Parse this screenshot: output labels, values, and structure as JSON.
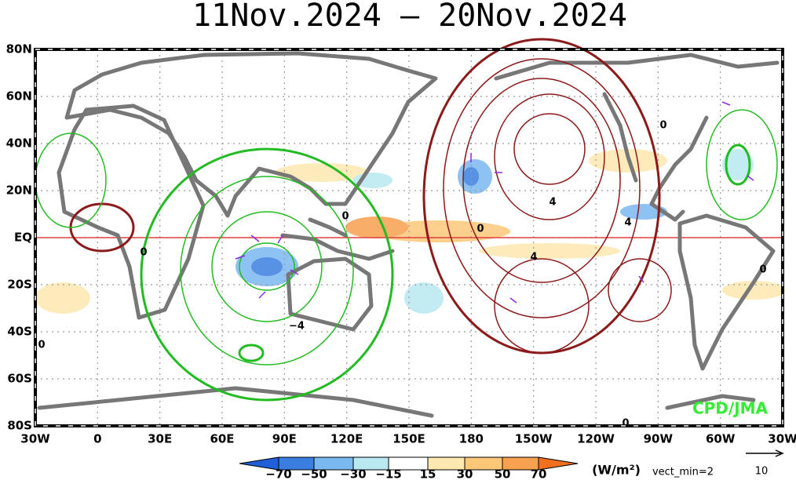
{
  "title": "11Nov.2024 – 20Nov.2024",
  "map": {
    "lat_labels": [
      "80N",
      "60N",
      "40N",
      "20N",
      "EQ",
      "20S",
      "40S",
      "60S",
      "80S"
    ],
    "lon_labels": [
      "30W",
      "0",
      "30E",
      "60E",
      "90E",
      "120E",
      "150E",
      "180",
      "150W",
      "120W",
      "90W",
      "60W",
      "30W"
    ],
    "contour_labels": [
      "0",
      "0",
      "0",
      "4",
      "4",
      "4",
      "−4",
      "0",
      "0",
      "0",
      "0"
    ],
    "credit": "CPD/JMA"
  },
  "colorbar": {
    "labels": [
      "−70",
      "−50",
      "−30",
      "−15",
      "15",
      "30",
      "50",
      "70"
    ],
    "units": "(W/m²)"
  },
  "vector_legend": {
    "note": "vect_min=2",
    "scale_label": "10"
  }
}
